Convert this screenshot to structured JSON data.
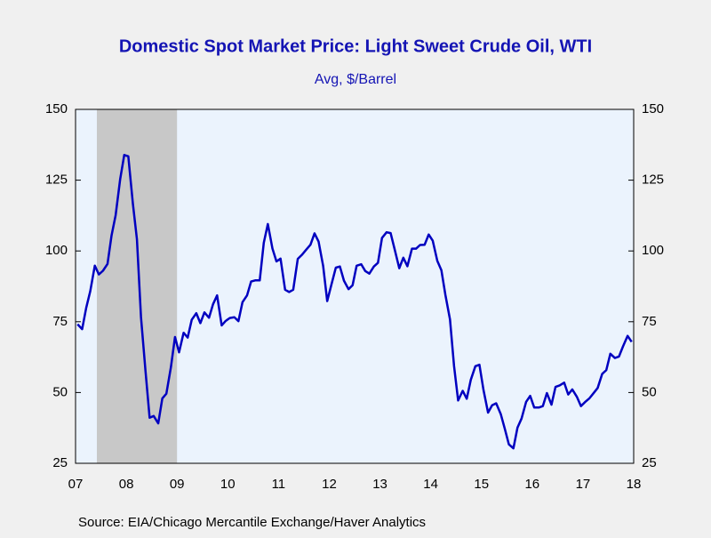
{
  "chart_data": {
    "type": "line",
    "title": "Domestic Spot Market Price: Light Sweet Crude Oil, WTI",
    "subtitle": "Avg, $/Barrel",
    "source": "Source:  EIA/Chicago Mercantile Exchange/Haver Analytics",
    "x": [
      2007.54,
      2007.63,
      2007.71,
      2007.79,
      2007.88,
      2007.96,
      2008.04,
      2008.13,
      2008.21,
      2008.29,
      2008.38,
      2008.46,
      2008.54,
      2008.63,
      2008.71,
      2008.79,
      2008.88,
      2008.96,
      2009.04,
      2009.13,
      2009.21,
      2009.29,
      2009.38,
      2009.46,
      2009.54,
      2009.63,
      2009.71,
      2009.79,
      2009.88,
      2009.96,
      2010.04,
      2010.13,
      2010.21,
      2010.29,
      2010.38,
      2010.46,
      2010.54,
      2010.63,
      2010.71,
      2010.79,
      2010.88,
      2010.96,
      2011.04,
      2011.13,
      2011.21,
      2011.29,
      2011.38,
      2011.46,
      2011.54,
      2011.63,
      2011.71,
      2011.79,
      2011.88,
      2011.96,
      2012.04,
      2012.13,
      2012.21,
      2012.29,
      2012.38,
      2012.46,
      2012.54,
      2012.63,
      2012.71,
      2012.79,
      2012.88,
      2012.96,
      2013.04,
      2013.13,
      2013.21,
      2013.29,
      2013.38,
      2013.46,
      2013.54,
      2013.63,
      2013.71,
      2013.79,
      2013.88,
      2013.96,
      2014.04,
      2014.13,
      2014.21,
      2014.29,
      2014.38,
      2014.46,
      2014.54,
      2014.63,
      2014.71,
      2014.79,
      2014.88,
      2014.96,
      2015.04,
      2015.13,
      2015.21,
      2015.29,
      2015.38,
      2015.46,
      2015.54,
      2015.63,
      2015.71,
      2015.79,
      2015.88,
      2015.96,
      2016.04,
      2016.13,
      2016.21,
      2016.29,
      2016.38,
      2016.46,
      2016.54,
      2016.63,
      2016.71,
      2016.79,
      2016.88,
      2016.96,
      2017.04,
      2017.13,
      2017.21,
      2017.29,
      2017.38,
      2017.46,
      2017.54,
      2017.63,
      2017.71,
      2017.79,
      2017.88,
      2017.96,
      2018.04,
      2018.13,
      2018.21,
      2018.29,
      2018.38,
      2018.46
    ],
    "series": [
      {
        "color": "#0000c0",
        "values": [
          74.1,
          72.4,
          79.9,
          85.8,
          94.8,
          91.7,
          93.0,
          95.4,
          105.5,
          112.6,
          125.4,
          133.9,
          133.4,
          116.7,
          104.1,
          76.6,
          57.3,
          41.1,
          41.7,
          39.1,
          47.9,
          49.6,
          59.0,
          69.6,
          64.2,
          71.1,
          69.4,
          75.7,
          78.0,
          74.5,
          78.3,
          76.4,
          81.2,
          84.3,
          73.7,
          75.3,
          76.3,
          76.6,
          75.2,
          81.9,
          84.3,
          89.2,
          89.6,
          89.6,
          102.9,
          109.5,
          100.9,
          96.3,
          97.3,
          86.3,
          85.5,
          86.3,
          97.2,
          98.6,
          100.3,
          102.2,
          106.2,
          103.3,
          94.7,
          82.3,
          87.9,
          94.1,
          94.5,
          89.5,
          86.5,
          87.9,
          94.8,
          95.3,
          92.9,
          92.0,
          94.5,
          95.8,
          104.6,
          106.6,
          106.3,
          100.5,
          93.9,
          97.6,
          94.6,
          100.8,
          100.8,
          102.1,
          102.2,
          105.8,
          103.6,
          96.5,
          93.2,
          84.4,
          75.8,
          59.3,
          47.2,
          50.6,
          47.8,
          54.5,
          59.3,
          59.8,
          50.9,
          42.9,
          45.5,
          46.2,
          42.4,
          37.2,
          31.7,
          30.3,
          37.6,
          40.8,
          46.7,
          48.8,
          44.7,
          44.7,
          45.2,
          49.8,
          45.7,
          52.0,
          52.5,
          53.5,
          49.3,
          51.1,
          48.5,
          45.2,
          46.6,
          48.0,
          49.8,
          51.6,
          56.6,
          57.9,
          63.7,
          62.2,
          62.7,
          66.3,
          70.0,
          67.9
        ]
      }
    ],
    "shaded_regions": [
      {
        "x0": 2007.92,
        "x1": 2009.5,
        "color": "#c8c8c8"
      }
    ],
    "xlim": [
      2007.5,
      2018.5
    ],
    "xticks": [
      {
        "value": 2007.5,
        "label": "07"
      },
      {
        "value": 2008.5,
        "label": "08"
      },
      {
        "value": 2009.5,
        "label": "09"
      },
      {
        "value": 2010.5,
        "label": "10"
      },
      {
        "value": 2011.5,
        "label": "11"
      },
      {
        "value": 2012.5,
        "label": "12"
      },
      {
        "value": 2013.5,
        "label": "13"
      },
      {
        "value": 2014.5,
        "label": "14"
      },
      {
        "value": 2015.5,
        "label": "15"
      },
      {
        "value": 2016.5,
        "label": "16"
      },
      {
        "value": 2017.5,
        "label": "17"
      },
      {
        "value": 2018.5,
        "label": "18"
      }
    ],
    "ylim": [
      25,
      150
    ],
    "yticks": [
      25,
      50,
      75,
      100,
      125,
      150
    ]
  }
}
